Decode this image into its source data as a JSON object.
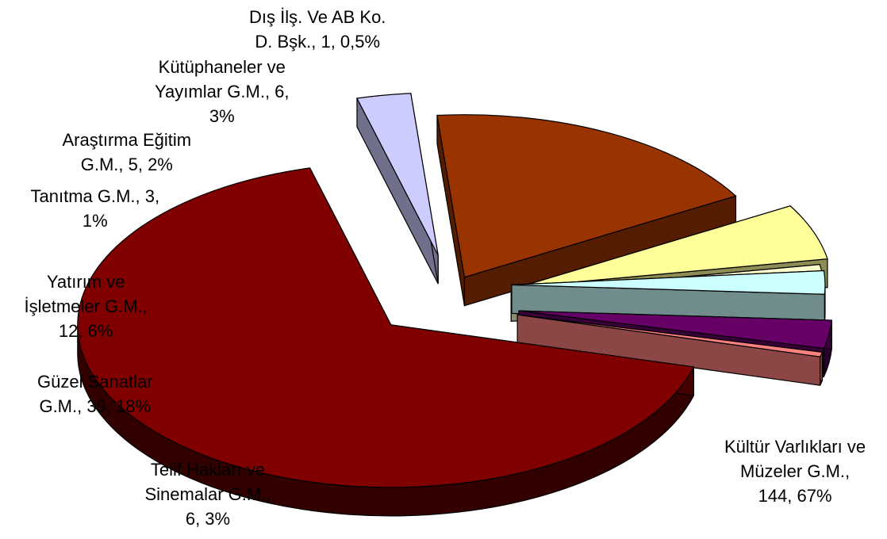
{
  "chart_data": {
    "type": "pie",
    "style": "3d-exploded",
    "title": "",
    "legend": "none",
    "slices": [
      {
        "name": "Kültür Varlıkları ve Müzeler G.M.",
        "value": 144,
        "percent_label": "67%",
        "color": "#800000",
        "label_lines": [
          "Kültür Varlıkları ve",
          "Müzeler G.M.,",
          "144, 67%"
        ]
      },
      {
        "name": "Telif Hakları ve Sinemalar G.M.",
        "value": 6,
        "percent_label": "3%",
        "color": "#CCCCFF",
        "label_lines": [
          "Telif Hakları ve",
          "Sinemalar G.M.,",
          "6, 3%"
        ]
      },
      {
        "name": "Güzel Sanatlar G.M.",
        "value": 39,
        "percent_label": "18%",
        "color": "#993300",
        "label_lines": [
          "Güzel Sanatlar",
          "G.M., 39, 18%"
        ]
      },
      {
        "name": "Yatırım ve İşletmeler G.M.",
        "value": 12,
        "percent_label": "6%",
        "color": "#FFFF99",
        "label_lines": [
          "Yatırım ve",
          "İşletmeler G.M.,",
          "12, 6%"
        ]
      },
      {
        "name": "Tanıtma G.M.",
        "value": 3,
        "percent_label": "1%",
        "color": "#FFFFCC",
        "label_lines": [
          "Tanıtma G.M., 3,",
          "1%"
        ]
      },
      {
        "name": "Araştırma Eğitim G.M.",
        "value": 5,
        "percent_label": "2%",
        "color": "#CCFFFF",
        "label_lines": [
          "Araştırma Eğitim",
          "G.M., 5, 2%"
        ]
      },
      {
        "name": "Kütüphaneler ve Yayımlar G.M.",
        "value": 6,
        "percent_label": "3%",
        "color": "#660066",
        "label_lines": [
          "Kütüphaneler ve",
          "Yayımlar G.M., 6,",
          "3%"
        ]
      },
      {
        "name": "Dış İlş. Ve AB Ko. D. Bşk.",
        "value": 1,
        "percent_label": "0,5%",
        "color": "#FF8080",
        "label_lines": [
          "Dış İlş. Ve AB Ko.",
          "D. Bşk., 1, 0,5%"
        ]
      }
    ]
  }
}
